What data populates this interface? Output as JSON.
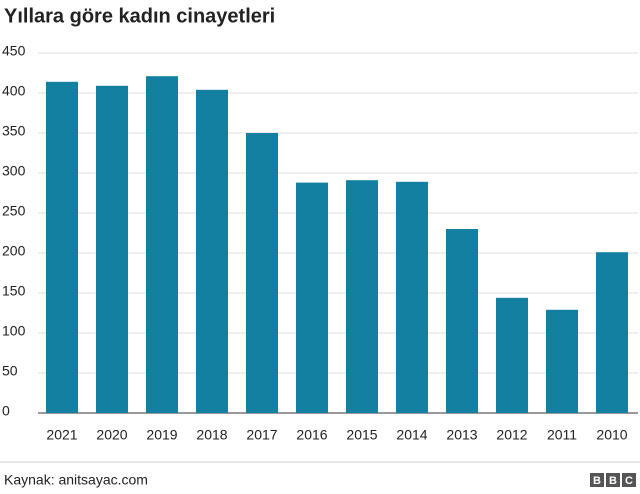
{
  "chart_data": {
    "type": "bar",
    "title": "Yıllara göre kadın cinayetleri",
    "categories": [
      "2021",
      "2020",
      "2019",
      "2018",
      "2017",
      "2016",
      "2015",
      "2014",
      "2013",
      "2012",
      "2011",
      "2010"
    ],
    "values": [
      414,
      409,
      421,
      404,
      350,
      288,
      291,
      289,
      230,
      144,
      129,
      201
    ],
    "color": "#1380a1",
    "ylim": [
      0,
      450
    ],
    "yticks": [
      0,
      50,
      100,
      150,
      200,
      250,
      300,
      350,
      400,
      450
    ],
    "grid": true
  },
  "footer": {
    "source": "Kaynak: anitsayac.com",
    "logo": [
      "B",
      "B",
      "C"
    ]
  }
}
